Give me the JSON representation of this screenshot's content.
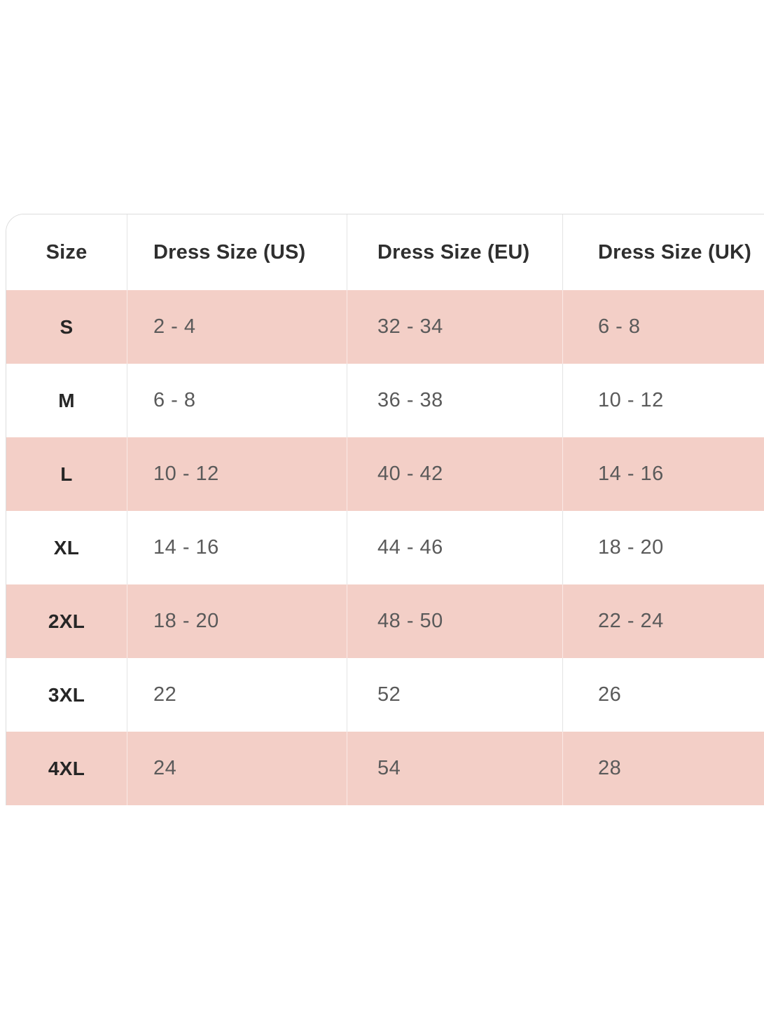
{
  "chart_data": {
    "type": "table",
    "columns": [
      "Size",
      "Dress Size (US)",
      "Dress Size (EU)",
      "Dress Size (UK)"
    ],
    "rows": [
      [
        "S",
        "2 - 4",
        "32 - 34",
        "6 - 8"
      ],
      [
        "M",
        "6 - 8",
        "36 - 38",
        "10 - 12"
      ],
      [
        "L",
        "10 - 12",
        "40 - 42",
        "14 - 16"
      ],
      [
        "XL",
        "14 - 16",
        "44 - 46",
        "18 - 20"
      ],
      [
        "2XL",
        "18 - 20",
        "48 - 50",
        "22 - 24"
      ],
      [
        "3XL",
        "22",
        "52",
        "26"
      ],
      [
        "4XL",
        "24",
        "54",
        "28"
      ]
    ],
    "layout": {
      "striped": true,
      "striped_row_sizes": [
        "S",
        "L",
        "2XL",
        "4XL"
      ],
      "legend": "none",
      "grid": "vertical-dividers-only"
    }
  },
  "colors": {
    "background": "#ffffff",
    "stripe_pink": "#f3cfc7",
    "header_text": "#2f2f2f",
    "size_label_text": "#262626",
    "value_text": "#5a5a5a",
    "divider": "#e4e4e4",
    "outer_border": "#dcdcdc"
  }
}
